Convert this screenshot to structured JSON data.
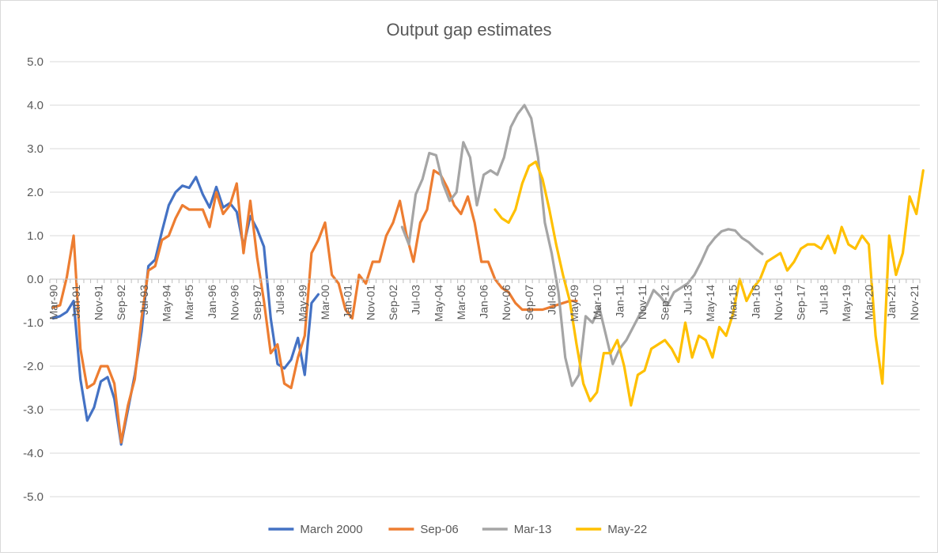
{
  "chart_data": {
    "type": "line",
    "title": "Output gap estimates",
    "xlabel": "",
    "ylabel": "",
    "ylim": [
      -5.0,
      5.0
    ],
    "y_ticks": [
      "5.0",
      "4.0",
      "3.0",
      "2.0",
      "1.0",
      "0.0",
      "-1.0",
      "-2.0",
      "-3.0",
      "-4.0",
      "-5.0"
    ],
    "x_start": "Mar-90",
    "x_interval_months": 3,
    "x_tick_labels": [
      "Mar-90",
      "Jan-91",
      "Nov-91",
      "Sep-92",
      "Jul-93",
      "May-94",
      "Mar-95",
      "Jan-96",
      "Nov-96",
      "Sep-97",
      "Jul-98",
      "May-99",
      "Mar-00",
      "Jan-01",
      "Nov-01",
      "Sep-02",
      "Jul-03",
      "May-04",
      "Mar-05",
      "Jan-06",
      "Nov-06",
      "Sep-07",
      "Jul-08",
      "May-09",
      "Mar-10",
      "Jan-11",
      "Nov-11",
      "Sep-12",
      "Jul-13",
      "May-14",
      "Mar-15",
      "Jan-16",
      "Nov-16",
      "Sep-17",
      "Jul-18",
      "May-19",
      "Mar-20",
      "Jan-21",
      "Nov-21"
    ],
    "grid": true,
    "legend_position": "bottom",
    "series": [
      {
        "name": "March 2000",
        "color": "#4472C4",
        "start": "Mar-90",
        "values": [
          -0.9,
          -0.85,
          -0.75,
          -0.5,
          -2.3,
          -3.25,
          -2.95,
          -2.35,
          -2.25,
          -2.75,
          -3.8,
          -3.0,
          -2.2,
          -1.2,
          0.3,
          0.45,
          1.1,
          1.7,
          2.0,
          2.15,
          2.1,
          2.35,
          1.95,
          1.65,
          2.12,
          1.65,
          1.75,
          1.55,
          0.75,
          1.45,
          1.15,
          0.75,
          -0.9,
          -1.95,
          -2.05,
          -1.85,
          -1.35,
          -2.2,
          -0.55,
          -0.35
        ]
      },
      {
        "name": "Sep-06",
        "color": "#ED7D31",
        "start": "Mar-90",
        "values": [
          -0.65,
          -0.6,
          0.05,
          1.0,
          -1.6,
          -2.5,
          -2.4,
          -2.0,
          -2.0,
          -2.4,
          -3.75,
          -2.9,
          -2.3,
          -0.9,
          0.2,
          0.3,
          0.9,
          1.0,
          1.4,
          1.7,
          1.6,
          1.6,
          1.6,
          1.2,
          2.0,
          1.5,
          1.7,
          2.2,
          0.6,
          1.8,
          0.5,
          -0.5,
          -1.7,
          -1.5,
          -2.4,
          -2.5,
          -1.8,
          -1.3,
          0.6,
          0.9,
          1.3,
          0.1,
          -0.1,
          -0.7,
          -0.9,
          0.1,
          -0.1,
          0.4,
          0.4,
          1.0,
          1.3,
          1.8,
          1.0,
          0.4,
          1.3,
          1.6,
          2.5,
          2.4,
          2.1,
          1.7,
          1.5,
          1.9,
          1.3,
          0.4,
          0.4,
          0.0,
          -0.2,
          -0.3,
          -0.55,
          -0.7,
          -0.7,
          -0.7,
          -0.7,
          -0.65,
          -0.6,
          -0.55,
          -0.5,
          -0.5
        ]
      },
      {
        "name": "Mar-13",
        "color": "#A5A5A5",
        "start": "Jan-03",
        "values": [
          1.2,
          0.8,
          1.95,
          2.3,
          2.9,
          2.85,
          2.2,
          1.8,
          2.0,
          3.15,
          2.8,
          1.7,
          2.4,
          2.5,
          2.4,
          2.8,
          3.5,
          3.8,
          4.0,
          3.7,
          2.8,
          1.3,
          0.6,
          -0.3,
          -1.8,
          -2.45,
          -2.2,
          -0.85,
          -1.0,
          -0.65,
          -1.3,
          -1.95,
          -1.6,
          -1.4,
          -1.1,
          -0.8,
          -0.6,
          -0.25,
          -0.4,
          -0.6,
          -0.3,
          -0.2,
          -0.1,
          0.1,
          0.4,
          0.75,
          0.95,
          1.1,
          1.15,
          1.12,
          0.95,
          0.85,
          0.7,
          0.58
        ]
      },
      {
        "name": "May-22",
        "color": "#FFC000",
        "start": "Jun-06",
        "values": [
          1.6,
          1.4,
          1.3,
          1.6,
          2.2,
          2.6,
          2.7,
          2.3,
          1.6,
          0.8,
          0.1,
          -0.5,
          -1.5,
          -2.4,
          -2.8,
          -2.6,
          -1.7,
          -1.7,
          -1.4,
          -2.0,
          -2.9,
          -2.2,
          -2.1,
          -1.6,
          -1.5,
          -1.4,
          -1.6,
          -1.9,
          -1.0,
          -1.8,
          -1.3,
          -1.4,
          -1.8,
          -1.1,
          -1.3,
          -0.8,
          0.0,
          -0.5,
          -0.2,
          0.0,
          0.4,
          0.5,
          0.6,
          0.2,
          0.4,
          0.7,
          0.8,
          0.8,
          0.7,
          1.0,
          0.6,
          1.2,
          0.8,
          0.7,
          1.0,
          0.8,
          -1.3,
          -2.4,
          1.0,
          0.1,
          0.6,
          1.9,
          1.5,
          2.5
        ]
      }
    ]
  }
}
